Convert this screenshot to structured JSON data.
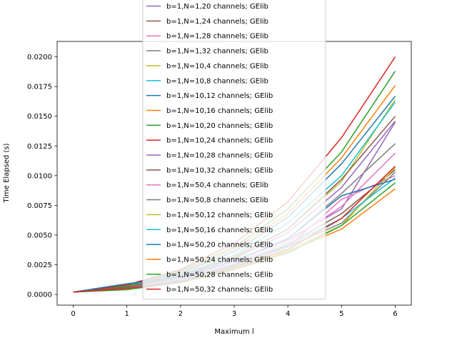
{
  "chart_data": {
    "type": "line",
    "title": "",
    "xlabel": "Maximum l",
    "ylabel": "Time Elapsed (s)",
    "xlim": [
      -0.3,
      6.3
    ],
    "ylim": [
      -0.0009,
      0.0213
    ],
    "x_ticks": [
      0,
      1,
      2,
      3,
      4,
      5,
      6
    ],
    "x_tick_labels": [
      "0",
      "1",
      "2",
      "3",
      "4",
      "5",
      "6"
    ],
    "y_ticks": [
      0.0,
      0.0025,
      0.005,
      0.0075,
      0.01,
      0.0125,
      0.015,
      0.0175,
      0.02
    ],
    "y_tick_labels": [
      "0.0000",
      "0.0025",
      "0.0050",
      "0.0075",
      "0.0100",
      "0.0125",
      "0.0150",
      "0.0175",
      "0.0200"
    ],
    "grid": false,
    "legend_position": "upper-center, extending above the plot",
    "x": [
      0,
      1,
      2,
      3,
      4,
      5,
      6
    ],
    "series": [
      {
        "name": "b=1,N=1,20 channels; GElib",
        "color": "#9467bd",
        "values": [
          0.0002,
          0.0006,
          0.0014,
          0.0028,
          0.0046,
          0.0072,
          0.0145
        ]
      },
      {
        "name": "b=1,N=1,24 channels; GElib",
        "color": "#8c564b",
        "values": [
          0.0002,
          0.0005,
          0.0012,
          0.0025,
          0.0042,
          0.0068,
          0.0105
        ]
      },
      {
        "name": "b=1,N=1,28 channels; GElib",
        "color": "#e377c2",
        "values": [
          0.0002,
          0.0005,
          0.0013,
          0.0026,
          0.0044,
          0.0074,
          0.0119
        ]
      },
      {
        "name": "b=1,N=1,32 channels; GElib",
        "color": "#7f7f7f",
        "values": [
          0.0002,
          0.0006,
          0.0014,
          0.0028,
          0.0047,
          0.0085,
          0.0127
        ]
      },
      {
        "name": "b=1,N=10,4 channels; GElib",
        "color": "#bcbd22",
        "values": [
          0.0002,
          0.0006,
          0.0016,
          0.0032,
          0.0055,
          0.0095,
          0.0164
        ]
      },
      {
        "name": "b=1,N=10,8 channels; GElib",
        "color": "#17becf",
        "values": [
          0.0002,
          0.0006,
          0.0017,
          0.0033,
          0.006,
          0.01,
          0.0162
        ]
      },
      {
        "name": "b=1,N=10,12 channels; GElib",
        "color": "#1f77b4",
        "values": [
          0.0002,
          0.0007,
          0.0018,
          0.0036,
          0.0065,
          0.011,
          0.0167
        ]
      },
      {
        "name": "b=1,N=10,16 channels; GElib",
        "color": "#ff7f0e",
        "values": [
          0.0002,
          0.0007,
          0.0019,
          0.0038,
          0.0068,
          0.0115,
          0.0176
        ]
      },
      {
        "name": "b=1,N=10,20 channels; GElib",
        "color": "#2ca02c",
        "values": [
          0.0002,
          0.0007,
          0.002,
          0.004,
          0.0072,
          0.012,
          0.0188
        ]
      },
      {
        "name": "b=1,N=10,24 channels; GElib",
        "color": "#d62728",
        "values": [
          0.0002,
          0.0008,
          0.0021,
          0.0043,
          0.0078,
          0.0132,
          0.02
        ]
      },
      {
        "name": "b=1,N=10,28 channels; GElib",
        "color": "#9467bd",
        "values": [
          0.0002,
          0.0006,
          0.0015,
          0.003,
          0.0052,
          0.009,
          0.0146
        ]
      },
      {
        "name": "b=1,N=10,32 channels; GElib",
        "color": "#8c564b",
        "values": [
          0.0002,
          0.0006,
          0.0016,
          0.0031,
          0.0055,
          0.0097,
          0.015
        ]
      },
      {
        "name": "b=1,N=50,4 channels; GElib",
        "color": "#e377c2",
        "values": [
          0.0002,
          0.0005,
          0.0012,
          0.0024,
          0.004,
          0.008,
          0.01
        ]
      },
      {
        "name": "b=1,N=50,8 channels; GElib",
        "color": "#7f7f7f",
        "values": [
          0.0002,
          0.0005,
          0.0012,
          0.0024,
          0.004,
          0.006,
          0.0103
        ]
      },
      {
        "name": "b=1,N=50,12 channels; GElib",
        "color": "#bcbd22",
        "values": [
          0.0002,
          0.0005,
          0.0011,
          0.0022,
          0.0037,
          0.0058,
          0.0107
        ]
      },
      {
        "name": "b=1,N=50,16 channels; GElib",
        "color": "#17becf",
        "values": [
          0.0002,
          0.0005,
          0.0012,
          0.0024,
          0.0041,
          0.0064,
          0.0098
        ]
      },
      {
        "name": "b=1,N=50,20 channels; GElib",
        "color": "#1f77b4",
        "values": [
          0.0002,
          0.0009,
          0.0015,
          0.0028,
          0.0047,
          0.0083,
          0.0097
        ]
      },
      {
        "name": "b=1,N=50,24 channels; GElib",
        "color": "#ff7f0e",
        "values": [
          0.0002,
          0.0005,
          0.0011,
          0.0022,
          0.0036,
          0.0055,
          0.0089
        ]
      },
      {
        "name": "b=1,N=50,28 channels; GElib",
        "color": "#2ca02c",
        "values": [
          0.0002,
          0.0004,
          0.001,
          0.0021,
          0.0035,
          0.0058,
          0.0094
        ]
      },
      {
        "name": "b=1,N=50,32 channels; GElib",
        "color": "#d62728",
        "values": [
          0.0002,
          0.0005,
          0.0011,
          0.0023,
          0.0038,
          0.0064,
          0.0108
        ]
      }
    ]
  }
}
